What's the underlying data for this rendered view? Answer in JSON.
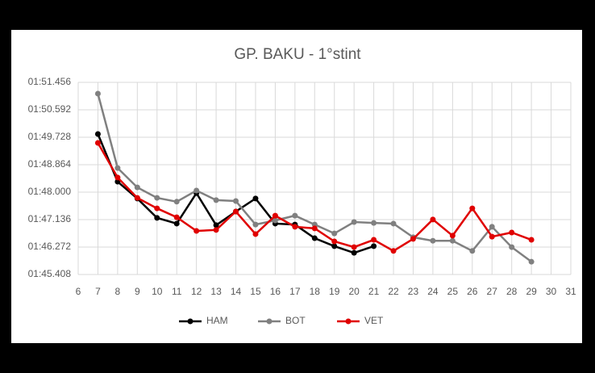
{
  "chart_data": {
    "type": "line",
    "title": "GP. BAKU - 1°stint",
    "x": [
      7,
      8,
      9,
      10,
      11,
      12,
      13,
      14,
      15,
      16,
      17,
      18,
      19,
      20,
      21,
      22,
      23,
      24,
      25,
      26,
      27,
      28,
      29
    ],
    "series": [
      {
        "name": "HAM",
        "color": "#000000",
        "values": [
          109.83,
          108.33,
          107.8,
          107.19,
          107.01,
          107.97,
          106.96,
          107.39,
          107.8,
          107.01,
          106.98,
          106.55,
          106.3,
          106.09,
          106.3,
          null,
          null,
          null,
          null,
          null,
          null,
          null,
          null
        ]
      },
      {
        "name": "BOT",
        "color": "#808080",
        "values": [
          111.1,
          108.76,
          108.15,
          107.82,
          107.7,
          108.05,
          107.75,
          107.72,
          106.98,
          107.11,
          107.26,
          106.98,
          106.7,
          107.06,
          107.03,
          107.01,
          106.58,
          106.47,
          106.47,
          106.15,
          106.91,
          106.27,
          105.81
        ]
      },
      {
        "name": "VET",
        "color": "#e00000",
        "values": [
          109.55,
          108.46,
          107.82,
          107.49,
          107.21,
          106.78,
          106.81,
          107.39,
          106.68,
          107.26,
          106.91,
          106.86,
          106.45,
          106.27,
          106.5,
          106.15,
          106.53,
          107.14,
          106.63,
          107.49,
          106.6,
          106.73,
          106.5
        ]
      }
    ],
    "xlim": [
      6,
      31
    ],
    "xticks": [
      6,
      7,
      8,
      9,
      10,
      11,
      12,
      13,
      14,
      15,
      16,
      17,
      18,
      19,
      20,
      21,
      22,
      23,
      24,
      25,
      26,
      27,
      28,
      29,
      30,
      31
    ],
    "ylim": [
      105.408,
      111.456
    ],
    "yticks": [
      {
        "value": 105.408,
        "label": "01:45.408"
      },
      {
        "value": 106.272,
        "label": "01:46.272"
      },
      {
        "value": 107.136,
        "label": "01:47.136"
      },
      {
        "value": 108.0,
        "label": "01:48.000"
      },
      {
        "value": 108.864,
        "label": "01:48.864"
      },
      {
        "value": 109.728,
        "label": "01:49.728"
      },
      {
        "value": 110.592,
        "label": "01:50.592"
      },
      {
        "value": 111.456,
        "label": "01:51.456"
      }
    ],
    "grid": true,
    "legend": "bottom"
  }
}
